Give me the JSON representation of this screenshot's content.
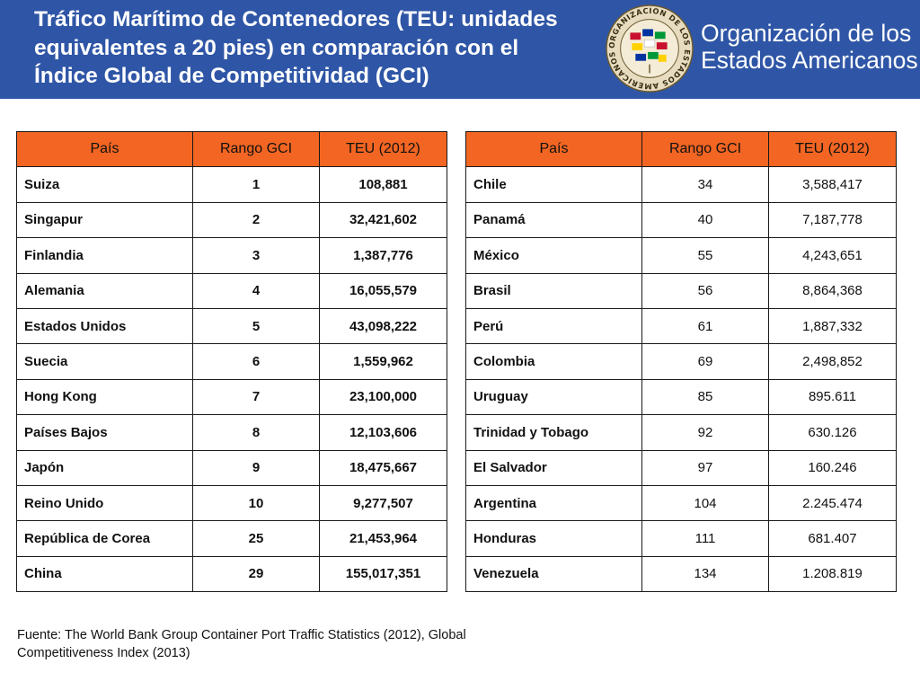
{
  "header": {
    "title_lines": [
      "Tráfico Marítimo de Contenedores (TEU: unidades",
      "equivalentes a 20 pies) en comparación con el",
      "Índice Global de Competitividad (GCI)"
    ],
    "seal_text": "ORGANIZACION DE LOS ESTADOS AMERICANOS",
    "org_name_lines": [
      "Organización de los",
      "Estados Americanos"
    ]
  },
  "colors": {
    "header_bg": "#2f56a6",
    "table_header_bg": "#f26522"
  },
  "table_columns": [
    "País",
    "Rango GCI",
    "TEU (2012)"
  ],
  "table_left": [
    {
      "country": "Suiza",
      "rank": "1",
      "teu": "108,881"
    },
    {
      "country": "Singapur",
      "rank": "2",
      "teu": "32,421,602"
    },
    {
      "country": "Finlandia",
      "rank": "3",
      "teu": "1,387,776"
    },
    {
      "country": "Alemania",
      "rank": "4",
      "teu": "16,055,579"
    },
    {
      "country": "Estados Unidos",
      "rank": "5",
      "teu": "43,098,222"
    },
    {
      "country": "Suecia",
      "rank": "6",
      "teu": "1,559,962"
    },
    {
      "country": "Hong Kong",
      "rank": "7",
      "teu": "23,100,000"
    },
    {
      "country": "Países Bajos",
      "rank": "8",
      "teu": "12,103,606"
    },
    {
      "country": "Japón",
      "rank": "9",
      "teu": "18,475,667"
    },
    {
      "country": "Reino Unido",
      "rank": "10",
      "teu": "9,277,507"
    },
    {
      "country": "República de Corea",
      "rank": "25",
      "teu": "21,453,964"
    },
    {
      "country": "China",
      "rank": "29",
      "teu": "155,017,351"
    }
  ],
  "table_right": [
    {
      "country": "Chile",
      "rank": "34",
      "teu": "3,588,417"
    },
    {
      "country": "Panamá",
      "rank": "40",
      "teu": "7,187,778"
    },
    {
      "country": "México",
      "rank": "55",
      "teu": "4,243,651"
    },
    {
      "country": "Brasil",
      "rank": "56",
      "teu": "8,864,368"
    },
    {
      "country": "Perú",
      "rank": "61",
      "teu": "1,887,332"
    },
    {
      "country": "Colombia",
      "rank": "69",
      "teu": "2,498,852"
    },
    {
      "country": "Uruguay",
      "rank": "85",
      "teu": "895.611"
    },
    {
      "country": "Trinidad y Tobago",
      "rank": "92",
      "teu": "630.126"
    },
    {
      "country": "El Salvador",
      "rank": "97",
      "teu": "160.246"
    },
    {
      "country": "Argentina",
      "rank": "104",
      "teu": "2.245.474"
    },
    {
      "country": "Honduras",
      "rank": "111",
      "teu": "681.407"
    },
    {
      "country": "Venezuela",
      "rank": "134",
      "teu": "1.208.819"
    }
  ],
  "source_lines": [
    "Fuente: The World Bank Group Container Port Traffic Statistics (2012), Global",
    "Competitiveness Index (2013)"
  ]
}
